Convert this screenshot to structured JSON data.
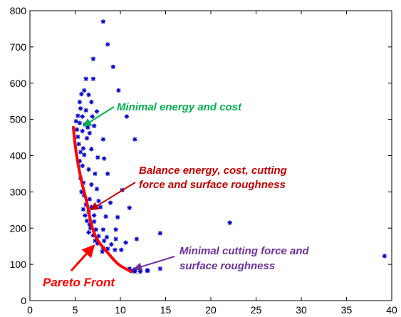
{
  "chart_data": {
    "type": "scatter",
    "xlim": [
      0,
      40
    ],
    "ylim": [
      0,
      800
    ],
    "xticks": [
      0,
      5,
      10,
      15,
      20,
      25,
      30,
      35,
      40
    ],
    "yticks": [
      0,
      100,
      200,
      300,
      400,
      500,
      600,
      700,
      800
    ],
    "grid": false,
    "marker": "asterisk",
    "marker_color": "#0000cc",
    "points": [
      [
        8.1,
        770
      ],
      [
        8.6,
        707
      ],
      [
        7.0,
        667
      ],
      [
        9.2,
        645
      ],
      [
        6.2,
        612
      ],
      [
        7.0,
        612
      ],
      [
        6.0,
        580
      ],
      [
        9.8,
        580
      ],
      [
        5.7,
        570
      ],
      [
        6.5,
        568
      ],
      [
        6.8,
        548
      ],
      [
        5.5,
        548
      ],
      [
        5.6,
        530
      ],
      [
        6.2,
        525
      ],
      [
        7.4,
        522
      ],
      [
        5.3,
        510
      ],
      [
        5.8,
        508
      ],
      [
        6.9,
        508
      ],
      [
        10.7,
        508
      ],
      [
        5.1,
        495
      ],
      [
        5.5,
        490
      ],
      [
        6.1,
        486
      ],
      [
        7.1,
        482
      ],
      [
        6.4,
        478
      ],
      [
        5.2,
        472
      ],
      [
        5.8,
        468
      ],
      [
        6.6,
        462
      ],
      [
        5.3,
        452
      ],
      [
        6.3,
        448
      ],
      [
        8.1,
        445
      ],
      [
        11.6,
        445
      ],
      [
        5.4,
        432
      ],
      [
        5.9,
        420
      ],
      [
        6.8,
        418
      ],
      [
        5.6,
        410
      ],
      [
        6.0,
        402
      ],
      [
        7.5,
        395
      ],
      [
        8.2,
        392
      ],
      [
        5.5,
        385
      ],
      [
        5.8,
        372
      ],
      [
        6.5,
        362
      ],
      [
        7.2,
        350
      ],
      [
        8.6,
        350
      ],
      [
        5.6,
        338
      ],
      [
        5.9,
        325
      ],
      [
        6.8,
        320
      ],
      [
        7.4,
        308
      ],
      [
        10.2,
        305
      ],
      [
        5.7,
        300
      ],
      [
        6.0,
        290
      ],
      [
        6.6,
        280
      ],
      [
        7.6,
        275
      ],
      [
        8.9,
        270
      ],
      [
        6.2,
        265
      ],
      [
        6.8,
        258
      ],
      [
        7.8,
        258
      ],
      [
        11.0,
        256
      ],
      [
        5.9,
        252
      ],
      [
        6.5,
        245
      ],
      [
        6.1,
        235
      ],
      [
        7.1,
        235
      ],
      [
        8.4,
        232
      ],
      [
        9.7,
        230
      ],
      [
        6.3,
        220
      ],
      [
        7.1,
        218
      ],
      [
        22.1,
        215
      ],
      [
        6.6,
        210
      ],
      [
        6.7,
        200
      ],
      [
        7.3,
        196
      ],
      [
        8.1,
        196
      ],
      [
        9.5,
        196
      ],
      [
        6.5,
        188
      ],
      [
        14.4,
        186
      ],
      [
        7.0,
        180
      ],
      [
        7.6,
        178
      ],
      [
        8.5,
        175
      ],
      [
        9.5,
        170
      ],
      [
        11.8,
        170
      ],
      [
        7.2,
        165
      ],
      [
        8.2,
        165
      ],
      [
        10.6,
        160
      ],
      [
        7.5,
        158
      ],
      [
        9.0,
        155
      ],
      [
        8.1,
        145
      ],
      [
        8.6,
        143
      ],
      [
        9.4,
        140
      ],
      [
        10.1,
        140
      ],
      [
        8.0,
        135
      ],
      [
        39.2,
        123
      ],
      [
        11.0,
        88
      ],
      [
        11.6,
        86
      ],
      [
        14.4,
        88
      ],
      [
        12.2,
        85
      ],
      [
        13.0,
        84
      ],
      [
        11.2,
        82
      ],
      [
        11.6,
        80
      ],
      [
        12.2,
        80
      ],
      [
        13.0,
        82
      ]
    ],
    "pareto_front": [
      [
        4.8,
        478
      ],
      [
        5.0,
        430
      ],
      [
        5.3,
        380
      ],
      [
        5.7,
        330
      ],
      [
        6.3,
        270
      ],
      [
        6.8,
        210
      ],
      [
        7.4,
        170
      ],
      [
        8.5,
        135
      ],
      [
        9.8,
        100
      ],
      [
        11.2,
        80
      ]
    ],
    "pareto_color": "#ff0000",
    "annotations": [
      {
        "text": "Minimal energy and cost",
        "color": "#00b050",
        "arrow_to": [
          6.0,
          483
        ]
      },
      {
        "text": "Balance energy, cost, cutting",
        "color": "#c00000",
        "arrow_to": [
          6.8,
          252
        ]
      },
      {
        "text": "force and surface roughness",
        "color": "#c00000"
      },
      {
        "text": "Minimal cutting force and",
        "color": "#7030a0",
        "arrow_to": [
          11.6,
          88
        ]
      },
      {
        "text": "surface roughness",
        "color": "#7030a0"
      }
    ],
    "pareto_label": {
      "text": "Pareto Front",
      "color": "#ff0000",
      "arrow_to": [
        7.0,
        150
      ]
    }
  }
}
